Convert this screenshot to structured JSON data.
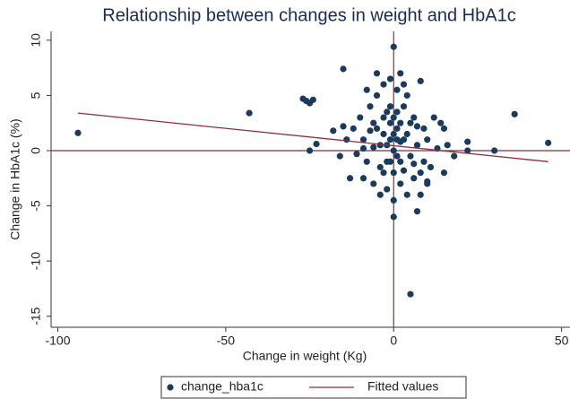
{
  "chart_data": {
    "type": "scatter",
    "title": "Relationship between changes in weight and HbA1c",
    "x_label": "Change in weight (Kg)",
    "y_label": "Change in HbA1c (%)",
    "xlim": [
      -102,
      52.5
    ],
    "ylim": [
      -16,
      10.8
    ],
    "xticks": [
      -100,
      -50,
      0,
      50
    ],
    "yticks": [
      -15,
      -10,
      -5,
      0,
      5,
      10
    ],
    "xline": 0,
    "yline": 0,
    "refline_color": "#8c2f39",
    "grid": false,
    "legend": "bottom",
    "series": [
      {
        "name": "change_hba1c",
        "type": "scatter",
        "color": "#1b3b5e",
        "x": [
          -94,
          -43,
          -27,
          -26,
          -25,
          -24,
          -25,
          -23,
          -15,
          -18,
          -13,
          0,
          5,
          0,
          7,
          36,
          46,
          22,
          30,
          22,
          15,
          18,
          10,
          -5,
          2,
          8,
          10,
          -12,
          -10,
          -9,
          -8,
          -7,
          -6,
          -5,
          -4,
          -3,
          -2,
          -1,
          0,
          1,
          2,
          3,
          4,
          5,
          6,
          7,
          8,
          9,
          10,
          11,
          12,
          13,
          -11,
          -9,
          -6,
          -4,
          -2,
          0,
          2,
          4,
          6,
          8,
          -3,
          1,
          4,
          -8,
          -1,
          3,
          -5,
          -3,
          -1,
          1,
          3,
          5,
          -2,
          0,
          2,
          -4,
          -6,
          6,
          -7,
          7,
          0,
          0,
          -1,
          1,
          -2,
          2,
          -3,
          3,
          -1,
          1,
          9,
          -9,
          14,
          -14,
          16,
          -16,
          15,
          -15
        ],
        "values": [
          1.6,
          3.4,
          4.7,
          4.5,
          4.3,
          4.6,
          0,
          0.6,
          7.4,
          1.8,
          -2.5,
          9.4,
          -13,
          -6,
          -5.5,
          3.3,
          0.7,
          0.8,
          0,
          0,
          2,
          -0.5,
          -3,
          7,
          7,
          6.3,
          -2.8,
          2,
          3,
          1,
          -1,
          4,
          2.5,
          5,
          0.5,
          -2,
          3.5,
          1,
          0,
          2,
          -1,
          4,
          1.5,
          -0.5,
          3,
          0.5,
          -2,
          2,
          1,
          -1.5,
          3,
          0.2,
          -0.3,
          -2.5,
          -3,
          -4,
          -3.5,
          -4.5,
          -3,
          -4,
          -2.5,
          -4,
          6,
          5.5,
          5,
          5.5,
          6.5,
          6,
          2,
          3,
          2.5,
          -0.5,
          1,
          2.5,
          -1,
          1.5,
          0.8,
          -1.5,
          0.3,
          -1.2,
          1.8,
          2.2,
          3,
          -2,
          -1,
          1,
          0.5,
          2.5,
          1.5,
          -1.8,
          4,
          3.5,
          -1,
          0.2,
          2.5,
          1,
          0.5,
          -0.5,
          -2,
          2.2
        ]
      },
      {
        "name": "Fitted values",
        "type": "line",
        "color": "#8c2f39",
        "x": [
          -94,
          46
        ],
        "values": [
          3.4,
          -1.0
        ]
      }
    ]
  }
}
